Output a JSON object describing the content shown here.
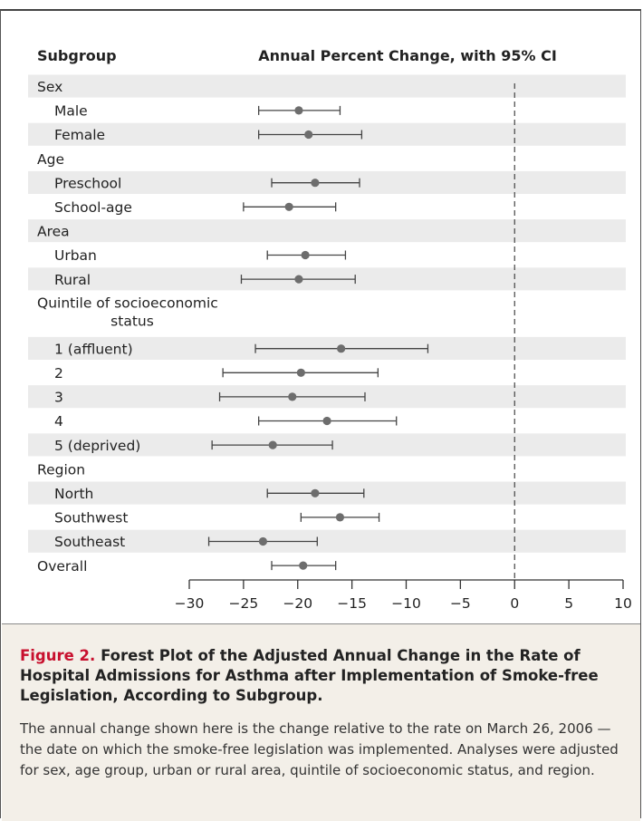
{
  "chart_data": {
    "type": "forest",
    "header": {
      "subgroup": "Subgroup",
      "effect": "Annual Percent Change, with 95% CI"
    },
    "x_axis": {
      "range": [
        -30,
        10
      ],
      "ticks": [
        -30,
        -25,
        -20,
        -15,
        -10,
        -5,
        0,
        5,
        10
      ],
      "tick_labels": [
        "−30",
        "−25",
        "−20",
        "−15",
        "−10",
        "−5",
        "0",
        "5",
        "10"
      ],
      "reference_line": 0
    },
    "rows": [
      {
        "label": "Sex",
        "level": 0,
        "shaded": true
      },
      {
        "label": "Male",
        "level": 1,
        "shaded": false,
        "estimate": -19.9,
        "lower": -23.6,
        "upper": -16.1
      },
      {
        "label": "Female",
        "level": 1,
        "shaded": true,
        "estimate": -19.0,
        "lower": -23.6,
        "upper": -14.1
      },
      {
        "label": "Age",
        "level": 0,
        "shaded": false
      },
      {
        "label": "Preschool",
        "level": 1,
        "shaded": true,
        "estimate": -18.4,
        "lower": -22.4,
        "upper": -14.3
      },
      {
        "label": "School-age",
        "level": 1,
        "shaded": false,
        "estimate": -20.8,
        "lower": -25.0,
        "upper": -16.5
      },
      {
        "label": "Area",
        "level": 0,
        "shaded": true
      },
      {
        "label": "Urban",
        "level": 1,
        "shaded": false,
        "estimate": -19.3,
        "lower": -22.8,
        "upper": -15.6
      },
      {
        "label": "Rural",
        "level": 1,
        "shaded": true,
        "estimate": -19.9,
        "lower": -25.2,
        "upper": -14.7
      },
      {
        "label": "Quintile of socioeconomic status",
        "level": 0,
        "shaded": false,
        "lines": [
          "Quintile of socioeconomic",
          "status"
        ]
      },
      {
        "label": "1 (affluent)",
        "level": 1,
        "shaded": true,
        "estimate": -16.0,
        "lower": -23.9,
        "upper": -8.0
      },
      {
        "label": "2",
        "level": 1,
        "shaded": false,
        "estimate": -19.7,
        "lower": -26.9,
        "upper": -12.6
      },
      {
        "label": "3",
        "level": 1,
        "shaded": true,
        "estimate": -20.5,
        "lower": -27.2,
        "upper": -13.8
      },
      {
        "label": "4",
        "level": 1,
        "shaded": false,
        "estimate": -17.3,
        "lower": -23.6,
        "upper": -10.9
      },
      {
        "label": "5 (deprived)",
        "level": 1,
        "shaded": true,
        "estimate": -22.3,
        "lower": -27.9,
        "upper": -16.8
      },
      {
        "label": "Region",
        "level": 0,
        "shaded": false
      },
      {
        "label": "North",
        "level": 1,
        "shaded": true,
        "estimate": -18.4,
        "lower": -22.8,
        "upper": -13.9
      },
      {
        "label": "Southwest",
        "level": 1,
        "shaded": false,
        "estimate": -16.1,
        "lower": -19.7,
        "upper": -12.5
      },
      {
        "label": "Southeast",
        "level": 1,
        "shaded": true,
        "estimate": -23.2,
        "lower": -28.2,
        "upper": -18.2
      },
      {
        "label": "Overall",
        "level": 0,
        "shaded": false,
        "estimate": -19.5,
        "lower": -22.4,
        "upper": -16.5
      }
    ],
    "colors": {
      "shading": "#ebebeb",
      "marks": "#444444",
      "points": "#6d6d6d"
    }
  },
  "caption": {
    "label": "Figure 2.",
    "title": "Forest Plot of the Adjusted Annual Change in the Rate of Hospital Admissions for Asthma after Implementation of Smoke-free Legislation, According to Subgroup.",
    "body": "The annual change shown here is the change relative to the rate on March 26, 2006 — the date on which the smoke-free legislation was implemented. Analyses were adjusted for sex, age group, urban or rural area, quintile of socioeconomic status, and region."
  }
}
